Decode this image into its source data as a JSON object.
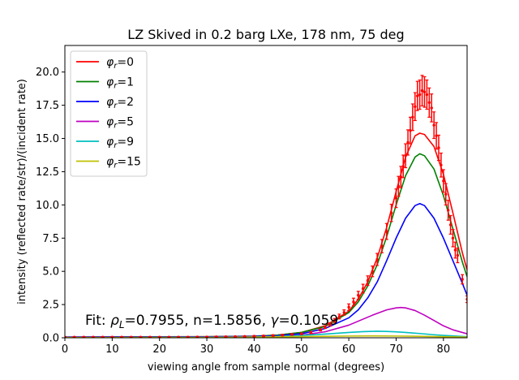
{
  "chart_data": {
    "type": "line",
    "title": "LZ Skived in 0.2 barg LXe, 178 nm, 75 deg",
    "xlabel": "viewing angle from sample normal (degrees)",
    "ylabel": "intensity (reflected rate/str)/(incident rate)",
    "xlim": [
      0,
      85
    ],
    "ylim": [
      0,
      22
    ],
    "xticks": [
      0,
      10,
      20,
      30,
      40,
      50,
      60,
      70,
      80
    ],
    "xtick_labels": [
      "0",
      "10",
      "20",
      "30",
      "40",
      "50",
      "60",
      "70",
      "80"
    ],
    "yticks": [
      0,
      2.5,
      5,
      7.5,
      10,
      12.5,
      15,
      17.5,
      20
    ],
    "ytick_labels": [
      "0.0",
      "2.5",
      "5.0",
      "7.5",
      "10.0",
      "12.5",
      "15.0",
      "17.5",
      "20.0"
    ],
    "grid": false,
    "legend_position": "top-left",
    "annotation": {
      "prefix": "Fit: ",
      "rho_symbol": "ρ",
      "rho_sub": "L",
      "rho_value": "=0.7955, n=1.5856, ",
      "gamma_symbol": "γ",
      "gamma_value": "=0.1059"
    },
    "series": [
      {
        "name": "φr=0",
        "symbol": "φ",
        "sub": "r",
        "label_suffix": "=0",
        "color": "#ff0000",
        "x": [
          0,
          10,
          20,
          30,
          40,
          45,
          50,
          55,
          60,
          62,
          64,
          66,
          68,
          70,
          72,
          74,
          75,
          76,
          78,
          80,
          82,
          84,
          85
        ],
        "y": [
          0.05,
          0.06,
          0.07,
          0.08,
          0.12,
          0.2,
          0.4,
          0.9,
          2.0,
          2.9,
          4.2,
          6.0,
          8.3,
          11.0,
          13.6,
          15.2,
          15.4,
          15.3,
          14.4,
          12.3,
          9.4,
          6.4,
          5.1
        ]
      },
      {
        "name": "φr=1",
        "symbol": "φ",
        "sub": "r",
        "label_suffix": "=1",
        "color": "#008000",
        "x": [
          0,
          10,
          20,
          30,
          40,
          45,
          50,
          55,
          60,
          62,
          64,
          66,
          68,
          70,
          72,
          74,
          75,
          76,
          78,
          80,
          82,
          84,
          85
        ],
        "y": [
          0.05,
          0.06,
          0.07,
          0.08,
          0.12,
          0.2,
          0.4,
          0.85,
          1.9,
          2.7,
          3.9,
          5.5,
          7.6,
          10.0,
          12.2,
          13.6,
          13.85,
          13.7,
          12.7,
          10.7,
          8.2,
          5.7,
          4.6
        ]
      },
      {
        "name": "φr=2",
        "symbol": "φ",
        "sub": "r",
        "label_suffix": "=2",
        "color": "#0000ff",
        "x": [
          0,
          10,
          20,
          30,
          40,
          45,
          50,
          55,
          60,
          62,
          64,
          66,
          68,
          70,
          72,
          74,
          75,
          76,
          78,
          80,
          82,
          84,
          85
        ],
        "y": [
          0.04,
          0.05,
          0.06,
          0.07,
          0.1,
          0.16,
          0.3,
          0.7,
          1.5,
          2.1,
          3.0,
          4.2,
          5.8,
          7.5,
          9.0,
          9.95,
          10.1,
          9.95,
          9.0,
          7.5,
          5.8,
          4.1,
          3.2
        ]
      },
      {
        "name": "φr=5",
        "symbol": "φ",
        "sub": "r",
        "label_suffix": "=5",
        "color": "#bf00bf",
        "x": [
          0,
          10,
          20,
          30,
          40,
          45,
          50,
          55,
          60,
          65,
          68,
          70,
          71,
          72,
          74,
          76,
          78,
          80,
          82,
          85
        ],
        "y": [
          0.02,
          0.02,
          0.03,
          0.04,
          0.06,
          0.1,
          0.2,
          0.45,
          0.95,
          1.7,
          2.1,
          2.25,
          2.28,
          2.25,
          2.05,
          1.7,
          1.3,
          0.9,
          0.6,
          0.3
        ]
      },
      {
        "name": "φr=9",
        "symbol": "φ",
        "sub": "r",
        "label_suffix": "=9",
        "color": "#00bfbf",
        "x": [
          0,
          10,
          20,
          30,
          40,
          45,
          50,
          55,
          60,
          63,
          66,
          68,
          70,
          72,
          75,
          78,
          80,
          85
        ],
        "y": [
          0.01,
          0.01,
          0.02,
          0.03,
          0.06,
          0.1,
          0.18,
          0.28,
          0.4,
          0.46,
          0.49,
          0.48,
          0.45,
          0.4,
          0.32,
          0.23,
          0.18,
          0.08
        ]
      },
      {
        "name": "φr=15",
        "symbol": "φ",
        "sub": "r",
        "label_suffix": "=15",
        "color": "#bfbf00",
        "x": [
          0,
          10,
          20,
          30,
          40,
          45,
          50,
          55,
          60,
          65,
          70,
          75,
          80,
          85
        ],
        "y": [
          0.01,
          0.01,
          0.02,
          0.03,
          0.05,
          0.07,
          0.09,
          0.11,
          0.13,
          0.14,
          0.13,
          0.11,
          0.08,
          0.05
        ]
      }
    ],
    "measured": {
      "color": "#ff0000",
      "x": [
        0,
        2,
        4,
        6,
        8,
        10,
        12,
        14,
        16,
        18,
        20,
        22,
        24,
        26,
        28,
        30,
        32,
        34,
        36,
        38,
        40,
        42,
        44,
        46,
        48,
        50,
        52,
        54,
        55,
        56,
        57,
        58,
        59,
        60,
        61,
        62,
        63,
        64,
        65,
        66,
        67,
        68,
        69,
        70,
        70.5,
        71,
        71.5,
        72,
        72.5,
        73,
        73.5,
        74,
        74.5,
        75,
        75.5,
        76,
        76.5,
        77,
        77.5,
        78,
        78.5,
        79,
        79.5,
        80,
        80.5,
        81,
        81.5,
        82,
        82.5,
        83,
        84,
        85
      ],
      "y": [
        0.05,
        0.05,
        0.05,
        0.05,
        0.05,
        0.05,
        0.05,
        0.05,
        0.05,
        0.05,
        0.05,
        0.05,
        0.05,
        0.05,
        0.06,
        0.06,
        0.07,
        0.08,
        0.09,
        0.1,
        0.12,
        0.14,
        0.17,
        0.2,
        0.25,
        0.3,
        0.4,
        0.6,
        0.8,
        1.0,
        1.3,
        1.6,
        1.9,
        2.3,
        2.7,
        3.2,
        3.7,
        4.3,
        5.0,
        5.9,
        6.9,
        8.0,
        9.4,
        10.5,
        11.4,
        12.1,
        12.9,
        13.7,
        14.7,
        15.6,
        16.6,
        17.4,
        18.2,
        18.3,
        18.6,
        18.5,
        18.3,
        17.7,
        17.3,
        16.0,
        15.2,
        14.3,
        13.0,
        11.8,
        10.8,
        9.6,
        8.5,
        7.5,
        6.6,
        6.2,
        4.4,
        2.9
      ],
      "yerr": [
        0.03,
        0.03,
        0.03,
        0.03,
        0.03,
        0.03,
        0.03,
        0.03,
        0.03,
        0.03,
        0.03,
        0.03,
        0.03,
        0.03,
        0.03,
        0.03,
        0.03,
        0.03,
        0.03,
        0.03,
        0.04,
        0.04,
        0.05,
        0.05,
        0.06,
        0.06,
        0.07,
        0.08,
        0.1,
        0.12,
        0.15,
        0.18,
        0.2,
        0.25,
        0.28,
        0.3,
        0.33,
        0.36,
        0.4,
        0.45,
        0.5,
        0.6,
        0.65,
        0.7,
        0.75,
        0.8,
        0.85,
        0.9,
        0.95,
        1.0,
        1.0,
        1.05,
        1.1,
        1.1,
        1.15,
        1.15,
        1.1,
        1.1,
        1.05,
        1.0,
        1.0,
        0.95,
        0.9,
        0.85,
        0.8,
        0.75,
        0.7,
        0.65,
        0.6,
        0.55,
        0.35,
        0.25
      ]
    }
  }
}
